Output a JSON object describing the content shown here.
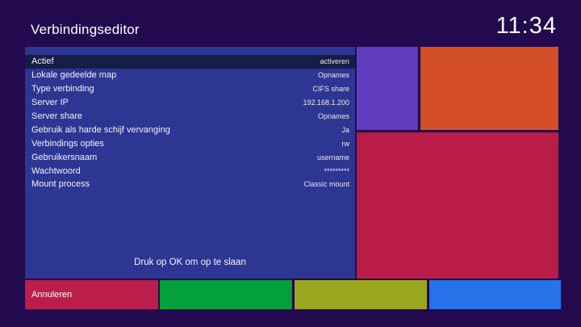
{
  "header": {
    "title": "Verbindingseditor",
    "clock": "11:34"
  },
  "settings": {
    "hint": "Druk op OK om op te slaan",
    "rows": [
      {
        "label": "Actief",
        "value": "activeren",
        "selected": true
      },
      {
        "label": "Lokale gedeelde map",
        "value": "Opnames",
        "selected": false
      },
      {
        "label": "Type verbinding",
        "value": "CIFS share",
        "selected": false
      },
      {
        "label": "Server IP",
        "value": "192.168.1.200",
        "selected": false
      },
      {
        "label": "Server share",
        "value": "Opnames",
        "selected": false
      },
      {
        "label": "Gebruik als harde schijf vervanging",
        "value": "Ja",
        "selected": false
      },
      {
        "label": "Verbindings opties",
        "value": "rw",
        "selected": false
      },
      {
        "label": "Gebruikersnaam",
        "value": "username",
        "selected": false
      },
      {
        "label": "Wachtwoord",
        "value": "*********",
        "selected": false
      },
      {
        "label": "Mount process",
        "value": "Classic mount",
        "selected": false
      }
    ]
  },
  "color_buttons": {
    "red_label": "Annuleren",
    "green_label": "",
    "yellow_label": "",
    "blue_label": ""
  },
  "colors": {
    "background": "#23094e",
    "panel": "#2d3692",
    "selected_row": "#161d46",
    "block_purple": "#5f3cbd",
    "block_orange": "#d44e28",
    "block_crimson": "#b81c47",
    "button_red": "#bb1e4b",
    "button_green": "#04a03c",
    "button_yellow": "#9aa71e",
    "button_blue": "#2772e8",
    "text": "#ffffff"
  }
}
